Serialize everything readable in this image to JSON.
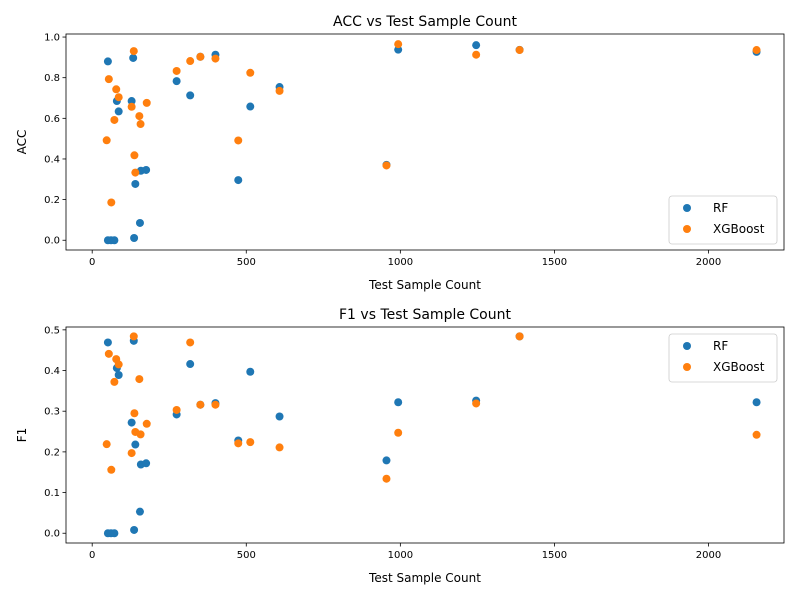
{
  "colors": {
    "rf": "#1f77b4",
    "xgb": "#ff7f0e"
  },
  "chart_data": [
    {
      "type": "scatter",
      "title": "ACC vs Test Sample Count",
      "xlabel": "Test Sample Count",
      "ylabel": "ACC",
      "xlim": [
        -85,
        2245
      ],
      "ylim": [
        -0.048,
        1.015
      ],
      "xticks": [
        0,
        500,
        1000,
        1500,
        2000
      ],
      "xtick_labels": [
        "0",
        "500",
        "1000",
        "1500",
        "2000"
      ],
      "yticks": [
        0.0,
        0.2,
        0.4,
        0.6,
        0.8,
        1.0
      ],
      "ytick_labels": [
        "0.0",
        "0.2",
        "0.4",
        "0.6",
        "0.8",
        "1.0"
      ],
      "grid": false,
      "legend": {
        "position": "lower-right",
        "entries": [
          "RF",
          "XGBoost"
        ]
      },
      "series": [
        {
          "name": "RF",
          "points": [
            [
              51,
              0.88
            ],
            [
              51,
              0.0
            ],
            [
              61,
              0.0
            ],
            [
              72,
              0.0
            ],
            [
              80,
              0.685
            ],
            [
              86,
              0.634
            ],
            [
              128,
              0.685
            ],
            [
              133,
              0.897
            ],
            [
              136,
              0.011
            ],
            [
              140,
              0.277
            ],
            [
              155,
              0.085
            ],
            [
              158,
              0.342
            ],
            [
              175,
              0.346
            ],
            [
              274,
              0.783
            ],
            [
              318,
              0.713
            ],
            [
              351,
              0.903
            ],
            [
              400,
              0.913
            ],
            [
              474,
              0.296
            ],
            [
              513,
              0.658
            ],
            [
              608,
              0.754
            ],
            [
              955,
              0.371
            ],
            [
              993,
              0.938
            ],
            [
              1246,
              0.96
            ],
            [
              1387,
              0.937
            ],
            [
              2156,
              0.927
            ]
          ]
        },
        {
          "name": "XGBoost",
          "points": [
            [
              47,
              0.492
            ],
            [
              54,
              0.793
            ],
            [
              62,
              0.186
            ],
            [
              72,
              0.592
            ],
            [
              78,
              0.743
            ],
            [
              86,
              0.704
            ],
            [
              128,
              0.657
            ],
            [
              135,
              0.931
            ],
            [
              137,
              0.418
            ],
            [
              140,
              0.333
            ],
            [
              153,
              0.611
            ],
            [
              157,
              0.572
            ],
            [
              177,
              0.676
            ],
            [
              274,
              0.833
            ],
            [
              318,
              0.882
            ],
            [
              351,
              0.903
            ],
            [
              400,
              0.894
            ],
            [
              474,
              0.491
            ],
            [
              513,
              0.824
            ],
            [
              608,
              0.735
            ],
            [
              955,
              0.368
            ],
            [
              993,
              0.965
            ],
            [
              1246,
              0.913
            ],
            [
              1387,
              0.936
            ],
            [
              2156,
              0.936
            ]
          ]
        }
      ]
    },
    {
      "type": "scatter",
      "title": "F1 vs Test Sample Count",
      "xlabel": "Test Sample Count",
      "ylabel": "F1",
      "xlim": [
        -85,
        2245
      ],
      "ylim": [
        -0.024,
        0.507
      ],
      "xticks": [
        0,
        500,
        1000,
        1500,
        2000
      ],
      "xtick_labels": [
        "0",
        "500",
        "1000",
        "1500",
        "2000"
      ],
      "yticks": [
        0.0,
        0.1,
        0.2,
        0.3,
        0.4,
        0.5
      ],
      "ytick_labels": [
        "0.0",
        "0.1",
        "0.2",
        "0.3",
        "0.4",
        "0.5"
      ],
      "grid": false,
      "legend": {
        "position": "upper-right",
        "entries": [
          "RF",
          "XGBoost"
        ]
      },
      "series": [
        {
          "name": "RF",
          "points": [
            [
              51,
              0.469
            ],
            [
              51,
              0.0
            ],
            [
              61,
              0.0
            ],
            [
              72,
              0.0
            ],
            [
              80,
              0.406
            ],
            [
              86,
              0.389
            ],
            [
              128,
              0.272
            ],
            [
              135,
              0.473
            ],
            [
              136,
              0.008
            ],
            [
              140,
              0.218
            ],
            [
              155,
              0.053
            ],
            [
              158,
              0.169
            ],
            [
              175,
              0.172
            ],
            [
              274,
              0.292
            ],
            [
              318,
              0.416
            ],
            [
              351,
              0.316
            ],
            [
              400,
              0.32
            ],
            [
              474,
              0.228
            ],
            [
              513,
              0.397
            ],
            [
              608,
              0.287
            ],
            [
              955,
              0.179
            ],
            [
              993,
              0.322
            ],
            [
              1246,
              0.326
            ],
            [
              1387,
              0.484
            ],
            [
              2156,
              0.322
            ]
          ]
        },
        {
          "name": "XGBoost",
          "points": [
            [
              47,
              0.219
            ],
            [
              54,
              0.441
            ],
            [
              62,
              0.156
            ],
            [
              72,
              0.372
            ],
            [
              78,
              0.428
            ],
            [
              86,
              0.415
            ],
            [
              128,
              0.197
            ],
            [
              135,
              0.484
            ],
            [
              137,
              0.295
            ],
            [
              140,
              0.249
            ],
            [
              153,
              0.379
            ],
            [
              157,
              0.243
            ],
            [
              177,
              0.269
            ],
            [
              274,
              0.303
            ],
            [
              318,
              0.469
            ],
            [
              351,
              0.316
            ],
            [
              400,
              0.316
            ],
            [
              474,
              0.221
            ],
            [
              513,
              0.224
            ],
            [
              608,
              0.211
            ],
            [
              955,
              0.134
            ],
            [
              993,
              0.247
            ],
            [
              1246,
              0.319
            ],
            [
              1387,
              0.484
            ],
            [
              2156,
              0.242
            ]
          ]
        }
      ]
    }
  ]
}
